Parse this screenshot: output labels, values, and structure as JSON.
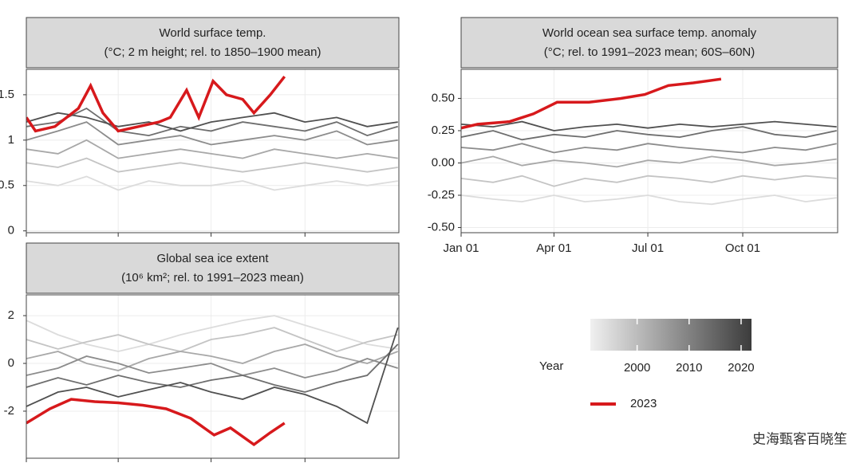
{
  "chart_data": [
    {
      "type": "line",
      "title": "World surface temp.",
      "subtitle": "(°C; 2 m height; rel. to 1850–1900 mean)",
      "x": [
        1,
        32,
        60,
        91,
        121,
        152,
        182,
        213,
        244,
        274,
        305,
        335,
        365
      ],
      "xlim": [
        1,
        366
      ],
      "xticks": [
        1,
        91,
        182,
        274
      ],
      "ylim": [
        -0.02,
        1.78
      ],
      "yticks": [
        0,
        0.5,
        1,
        1.5
      ],
      "grid": true,
      "series": [
        {
          "color": "#dcdcdc",
          "values": [
            0.55,
            0.5,
            0.6,
            0.45,
            0.55,
            0.5,
            0.5,
            0.55,
            0.45,
            0.5,
            0.55,
            0.5,
            0.55
          ]
        },
        {
          "color": "#c4c4c4",
          "values": [
            0.75,
            0.7,
            0.8,
            0.65,
            0.7,
            0.75,
            0.7,
            0.65,
            0.7,
            0.75,
            0.7,
            0.65,
            0.7
          ]
        },
        {
          "color": "#a8a8a8",
          "values": [
            0.9,
            0.85,
            1.0,
            0.8,
            0.85,
            0.9,
            0.85,
            0.8,
            0.9,
            0.85,
            0.8,
            0.85,
            0.8
          ]
        },
        {
          "color": "#8c8c8c",
          "values": [
            1.0,
            1.1,
            1.2,
            0.95,
            1.0,
            1.05,
            0.95,
            1.0,
            1.05,
            1.0,
            1.1,
            0.95,
            1.0
          ]
        },
        {
          "color": "#6e6e6e",
          "values": [
            1.15,
            1.2,
            1.35,
            1.1,
            1.05,
            1.15,
            1.1,
            1.2,
            1.15,
            1.1,
            1.2,
            1.05,
            1.15
          ]
        },
        {
          "color": "#505050",
          "values": [
            1.2,
            1.3,
            1.25,
            1.15,
            1.2,
            1.1,
            1.2,
            1.25,
            1.3,
            1.2,
            1.25,
            1.15,
            1.2
          ]
        },
        {
          "color": "#d7191c",
          "x": [
            1,
            10,
            29,
            52,
            64,
            76,
            91,
            111,
            131,
            142,
            158,
            170,
            184,
            197,
            213,
            224,
            240,
            254
          ],
          "values": [
            1.25,
            1.1,
            1.15,
            1.35,
            1.6,
            1.3,
            1.1,
            1.15,
            1.2,
            1.25,
            1.55,
            1.25,
            1.65,
            1.5,
            1.45,
            1.3,
            1.5,
            1.7
          ]
        }
      ]
    },
    {
      "type": "line",
      "title": "World ocean sea surface temp. anomaly",
      "subtitle": "(°C; rel. to 1991–2023 mean; 60S–60N)",
      "x": [
        1,
        32,
        60,
        91,
        121,
        152,
        182,
        213,
        244,
        274,
        305,
        335,
        365
      ],
      "xlim": [
        1,
        366
      ],
      "xticks": [
        {
          "value": 1,
          "label": "Jan 01"
        },
        {
          "value": 91,
          "label": "Apr 01"
        },
        {
          "value": 182,
          "label": "Jul 01"
        },
        {
          "value": 274,
          "label": "Oct 01"
        }
      ],
      "ylim": [
        -0.54,
        0.725
      ],
      "yticks": [
        {
          "value": -0.5,
          "label": "-0.50"
        },
        {
          "value": -0.25,
          "label": "-0.25"
        },
        {
          "value": 0,
          "label": "0.00"
        },
        {
          "value": 0.25,
          "label": "0.25"
        },
        {
          "value": 0.5,
          "label": "0.50"
        }
      ],
      "grid": true,
      "series": [
        {
          "color": "#dcdcdc",
          "values": [
            -0.25,
            -0.28,
            -0.3,
            -0.25,
            -0.3,
            -0.28,
            -0.25,
            -0.3,
            -0.32,
            -0.28,
            -0.25,
            -0.3,
            -0.27
          ]
        },
        {
          "color": "#c4c4c4",
          "values": [
            -0.12,
            -0.15,
            -0.1,
            -0.18,
            -0.12,
            -0.15,
            -0.1,
            -0.12,
            -0.15,
            -0.1,
            -0.13,
            -0.1,
            -0.12
          ]
        },
        {
          "color": "#a8a8a8",
          "values": [
            0.0,
            0.05,
            -0.02,
            0.02,
            0.0,
            -0.03,
            0.02,
            0.0,
            0.05,
            0.02,
            -0.02,
            0.0,
            0.03
          ]
        },
        {
          "color": "#8c8c8c",
          "values": [
            0.12,
            0.1,
            0.15,
            0.08,
            0.12,
            0.1,
            0.15,
            0.12,
            0.1,
            0.08,
            0.12,
            0.1,
            0.15
          ]
        },
        {
          "color": "#6e6e6e",
          "values": [
            0.2,
            0.25,
            0.18,
            0.22,
            0.2,
            0.25,
            0.22,
            0.2,
            0.25,
            0.28,
            0.22,
            0.2,
            0.25
          ]
        },
        {
          "color": "#505050",
          "values": [
            0.3,
            0.28,
            0.32,
            0.25,
            0.28,
            0.3,
            0.27,
            0.3,
            0.28,
            0.3,
            0.32,
            0.3,
            0.28
          ]
        },
        {
          "color": "#d7191c",
          "x": [
            1,
            17,
            48,
            71,
            94,
            125,
            156,
            179,
            202,
            226,
            253
          ],
          "values": [
            0.27,
            0.3,
            0.32,
            0.38,
            0.47,
            0.47,
            0.5,
            0.53,
            0.6,
            0.62,
            0.65
          ]
        }
      ]
    },
    {
      "type": "line",
      "title": "Global sea ice extent",
      "subtitle": "(10⁶ km²; rel. to 1991–2023 mean)",
      "x": [
        1,
        32,
        60,
        91,
        121,
        152,
        182,
        213,
        244,
        274,
        305,
        335,
        365
      ],
      "xlim": [
        1,
        366
      ],
      "xticks": [
        1,
        91,
        182,
        274
      ],
      "ylim": [
        -3.97,
        2.87
      ],
      "yticks": [
        -2,
        0,
        2
      ],
      "grid": true,
      "series": [
        {
          "color": "#dcdcdc",
          "values": [
            1.8,
            1.2,
            0.8,
            0.5,
            0.8,
            1.2,
            1.5,
            1.8,
            2.0,
            1.6,
            1.2,
            0.8,
            0.6
          ]
        },
        {
          "color": "#c4c4c4",
          "values": [
            1.0,
            0.6,
            0.9,
            1.2,
            0.8,
            0.5,
            1.0,
            1.2,
            1.5,
            1.0,
            0.5,
            0.9,
            1.2
          ]
        },
        {
          "color": "#a8a8a8",
          "values": [
            0.2,
            0.5,
            0.0,
            -0.3,
            0.2,
            0.5,
            0.3,
            0.0,
            0.5,
            0.8,
            0.3,
            0.0,
            0.5
          ]
        },
        {
          "color": "#8c8c8c",
          "values": [
            -0.5,
            -0.2,
            0.3,
            0.0,
            -0.4,
            -0.2,
            0.0,
            -0.5,
            -0.2,
            -0.6,
            -0.3,
            0.2,
            -0.2
          ]
        },
        {
          "color": "#6e6e6e",
          "values": [
            -1.0,
            -0.6,
            -0.9,
            -0.5,
            -0.8,
            -1.0,
            -0.7,
            -0.5,
            -0.9,
            -1.2,
            -0.8,
            -0.5,
            0.8
          ]
        },
        {
          "color": "#505050",
          "values": [
            -1.8,
            -1.2,
            -1.0,
            -1.4,
            -1.1,
            -0.8,
            -1.2,
            -1.5,
            -1.0,
            -1.3,
            -1.8,
            -2.5,
            1.5
          ]
        },
        {
          "color": "#d7191c",
          "x": [
            1,
            24,
            45,
            68,
            91,
            115,
            138,
            162,
            185,
            201,
            224,
            240,
            254
          ],
          "values": [
            -2.5,
            -1.9,
            -1.5,
            -1.6,
            -1.65,
            -1.75,
            -1.9,
            -2.3,
            -3.0,
            -2.7,
            -3.4,
            -2.9,
            -2.5
          ]
        }
      ]
    }
  ],
  "legend": {
    "title": "Year",
    "colorbar": {
      "lim": [
        1991,
        2022
      ],
      "ticks": [
        2000,
        2010,
        2020
      ],
      "colors": [
        "#f0f0f0",
        "#3c3c3c"
      ]
    },
    "highlight": {
      "name": "2023",
      "color": "#d7191c"
    }
  },
  "watermark": "史海甄客百晓笙"
}
